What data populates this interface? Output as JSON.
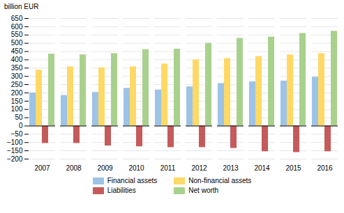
{
  "chart_data": {
    "type": "bar",
    "ylabel": "billion EUR",
    "categories": [
      "2007",
      "2008",
      "2009",
      "2010",
      "2011",
      "2012",
      "2013",
      "2014",
      "2015",
      "2016"
    ],
    "series": [
      {
        "name": "Financial assets",
        "color": "#9dc3e6",
        "values": [
          200,
          185,
          203,
          228,
          218,
          237,
          257,
          267,
          272,
          295
        ]
      },
      {
        "name": "Non-financial assets",
        "color": "#ffd966",
        "values": [
          338,
          358,
          352,
          358,
          375,
          400,
          408,
          420,
          430,
          438
        ]
      },
      {
        "name": "Liabilities",
        "color": "#c55a5a",
        "values": [
          -105,
          -105,
          -120,
          -125,
          -130,
          -130,
          -135,
          -155,
          -160,
          -155
        ]
      },
      {
        "name": "Net worth",
        "color": "#a9d18e",
        "values": [
          435,
          430,
          438,
          462,
          465,
          500,
          530,
          538,
          560,
          573
        ]
      }
    ],
    "ylim": [
      -200,
      650
    ],
    "yticks": [
      -200,
      -150,
      -100,
      -50,
      0,
      50,
      100,
      150,
      200,
      250,
      300,
      350,
      400,
      450,
      500,
      550,
      600,
      650
    ],
    "grid": true,
    "legend": "bottom"
  }
}
